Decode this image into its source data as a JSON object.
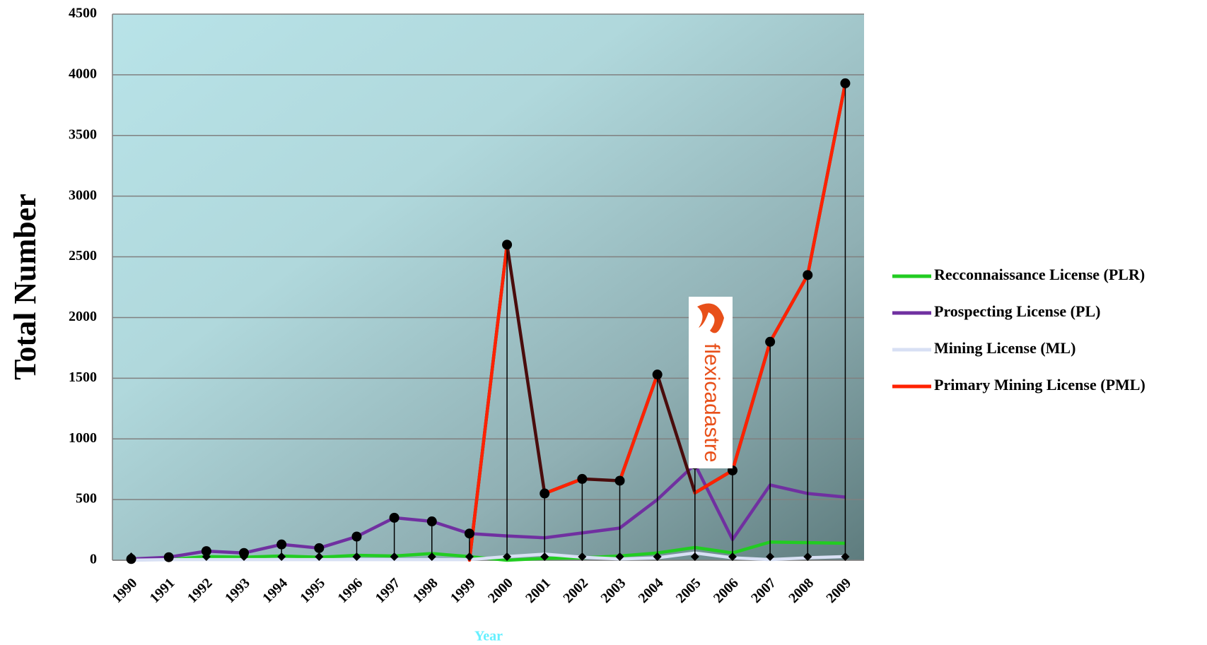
{
  "chart_data": {
    "type": "line",
    "y_label": "Total Number",
    "x_label": "Year",
    "logo": "flexicadastre",
    "categories": [
      "1990",
      "1991",
      "1992",
      "1993",
      "1994",
      "1995",
      "1996",
      "1997",
      "1998",
      "1999",
      "2000",
      "2001",
      "2002",
      "2003",
      "2004",
      "2005",
      "2006",
      "2007",
      "2008",
      "2009"
    ],
    "ylim": [
      0,
      4500
    ],
    "yticks": [
      0,
      500,
      1000,
      1500,
      2000,
      2500,
      3000,
      3500,
      4000,
      4500
    ],
    "grid": true,
    "legend": "right",
    "series": [
      {
        "name": "Recconnaissance License (PLR)",
        "color": "#22cc22",
        "values": [
          5,
          5,
          30,
          25,
          35,
          25,
          40,
          35,
          55,
          30,
          0,
          15,
          20,
          35,
          60,
          105,
          60,
          150,
          145,
          140
        ]
      },
      {
        "name": "Prospecting License (PL)",
        "color": "#7030a0",
        "values": [
          10,
          25,
          75,
          60,
          130,
          100,
          195,
          350,
          320,
          220,
          200,
          185,
          225,
          265,
          500,
          790,
          170,
          620,
          550,
          520
        ]
      },
      {
        "name": "Mining License (ML)",
        "color": "#d8e0f4",
        "values": [
          0,
          5,
          5,
          5,
          5,
          5,
          5,
          5,
          5,
          5,
          30,
          50,
          25,
          10,
          20,
          60,
          20,
          5,
          20,
          30
        ]
      },
      {
        "name": "Primary Mining License (PML)",
        "color": "#4a0c0c",
        "rise_color": "#ff2200",
        "markers": true,
        "values": [
          null,
          null,
          null,
          null,
          null,
          null,
          null,
          null,
          null,
          0,
          2600,
          550,
          670,
          655,
          1530,
          555,
          740,
          1800,
          2350,
          3930
        ]
      }
    ]
  }
}
